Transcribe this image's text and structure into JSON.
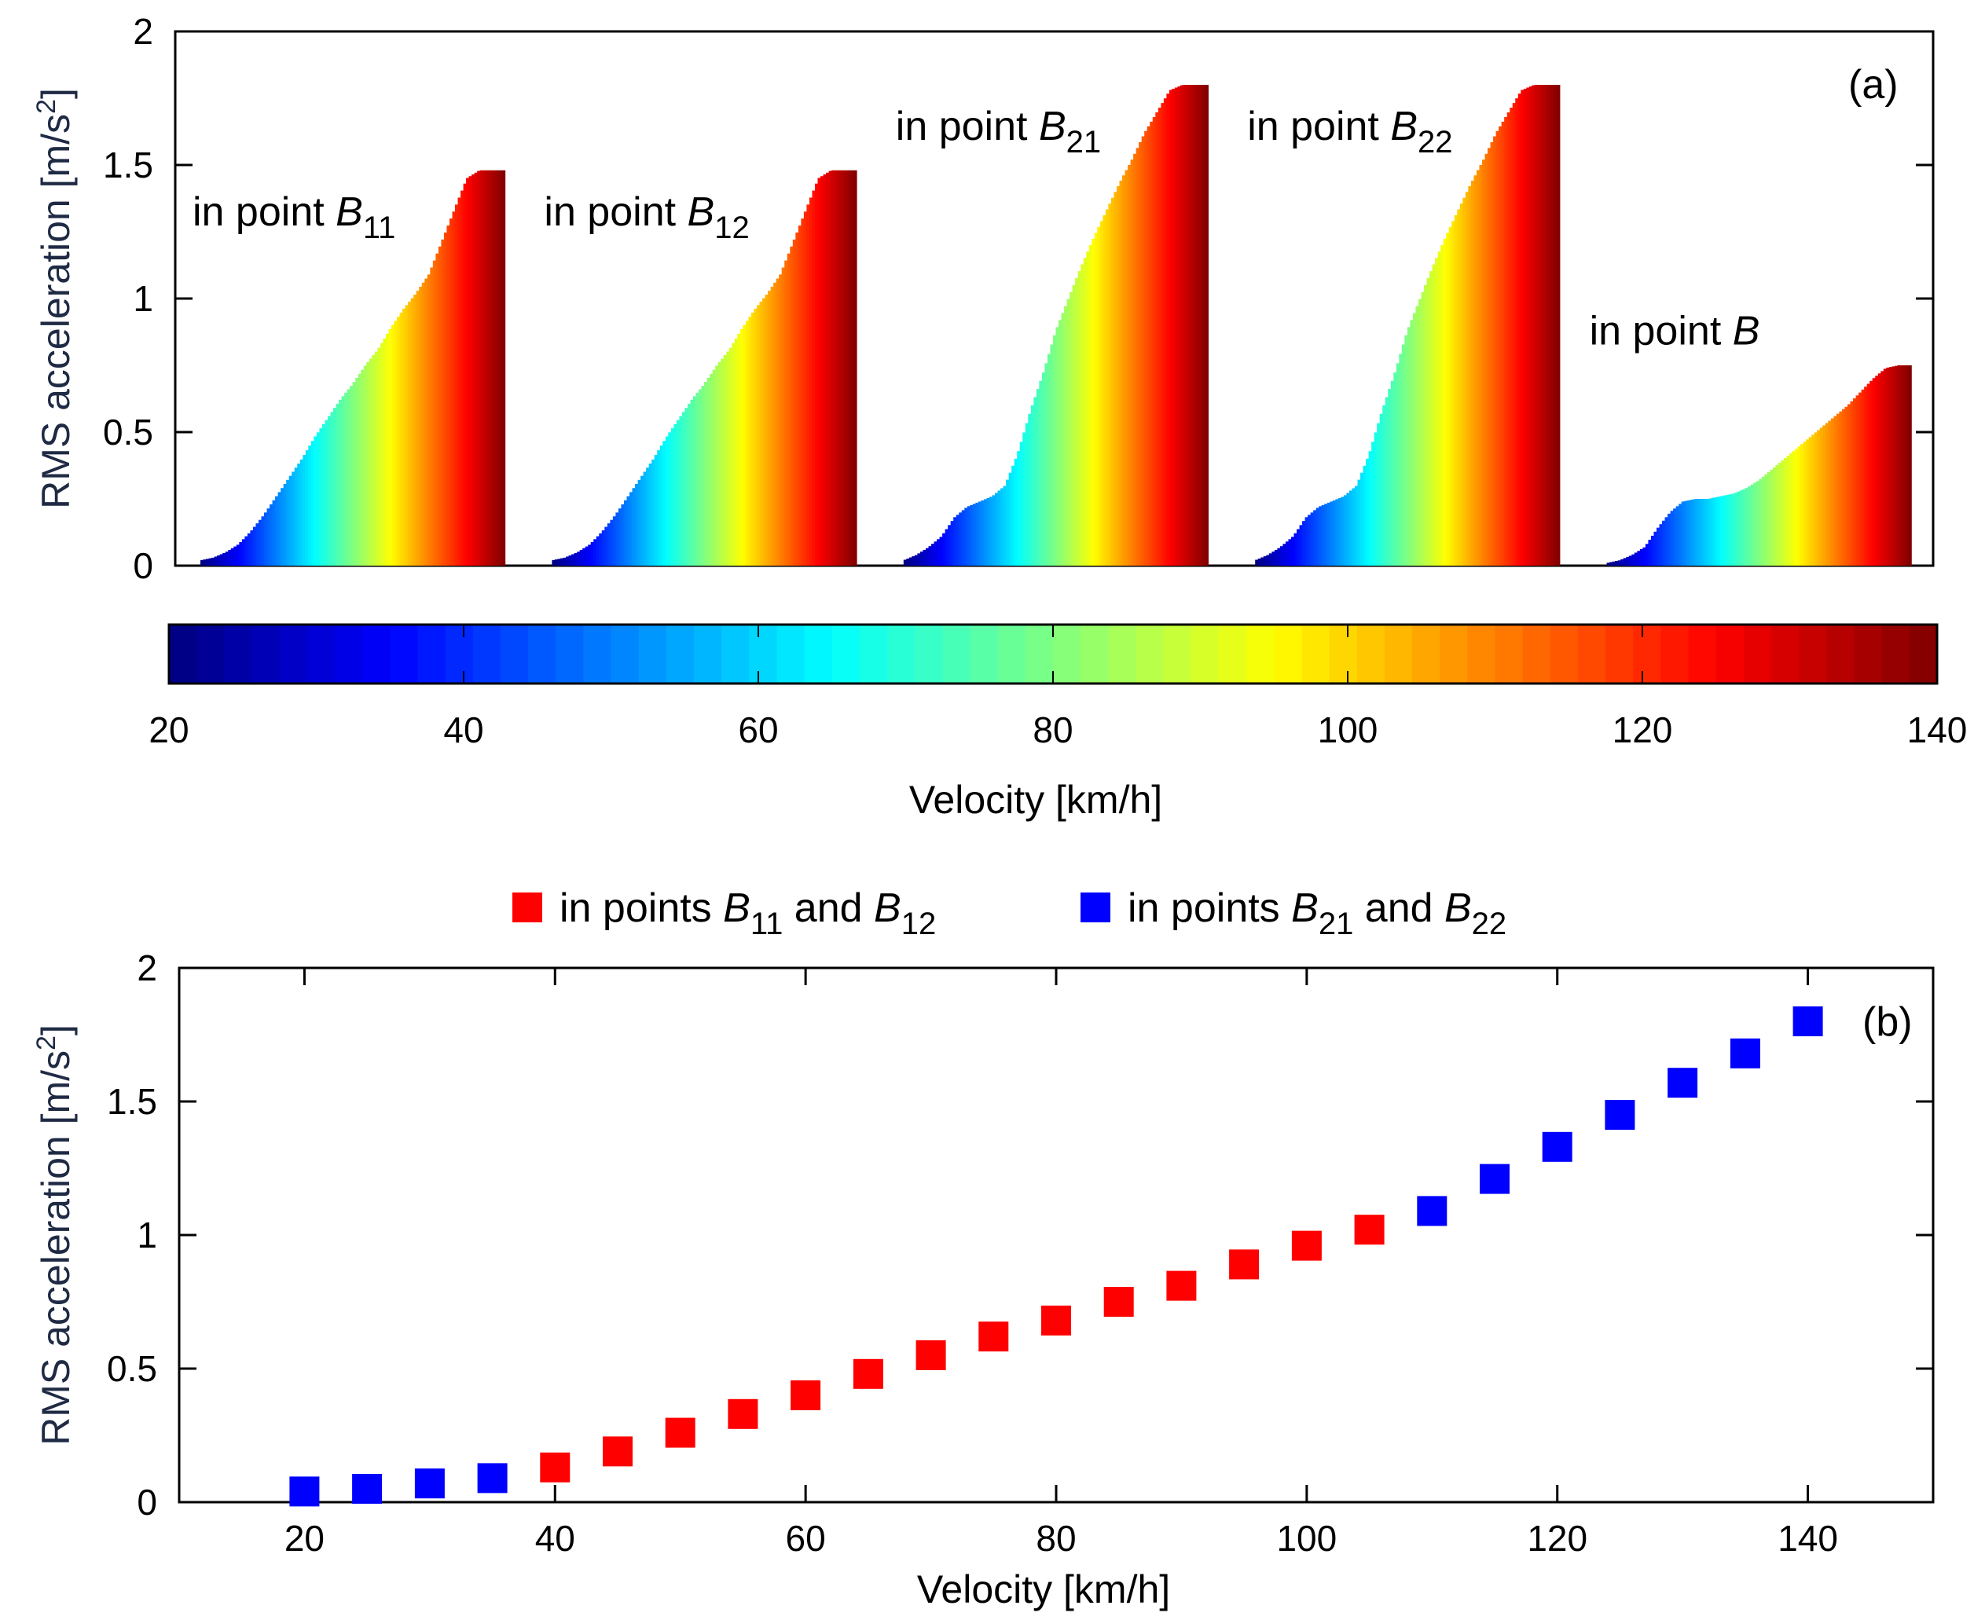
{
  "chart_data": [
    {
      "type": "area",
      "panel_label": "(a)",
      "title": "",
      "ylabel": "RMS acceleration [m/s",
      "ylabel_sup": "2",
      "ylabel_close": "]",
      "ylim": [
        0,
        2
      ],
      "yticks": [
        "0",
        "0.5",
        "1",
        "1.5",
        "2"
      ],
      "yticks_values": [
        0,
        0.5,
        1,
        1.5,
        2
      ],
      "velocity_range": [
        20,
        140
      ],
      "series": [
        {
          "name": "in point B11",
          "text": "in point ",
          "base": "B",
          "sub": "11",
          "values": [
            0.02,
            0.03,
            0.05,
            0.08,
            0.13,
            0.19,
            0.26,
            0.33,
            0.4,
            0.48,
            0.55,
            0.62,
            0.68,
            0.75,
            0.81,
            0.89,
            0.96,
            1.02,
            1.09,
            1.21,
            1.33,
            1.45,
            1.48,
            1.48,
            1.48
          ]
        },
        {
          "name": "in point B12",
          "text": "in point ",
          "base": "B",
          "sub": "12",
          "values": [
            0.02,
            0.03,
            0.05,
            0.08,
            0.13,
            0.19,
            0.26,
            0.33,
            0.4,
            0.48,
            0.55,
            0.62,
            0.68,
            0.75,
            0.81,
            0.89,
            0.96,
            1.02,
            1.09,
            1.21,
            1.33,
            1.45,
            1.48,
            1.48,
            1.48
          ]
        },
        {
          "name": "in point B21",
          "text": "in point ",
          "base": "B",
          "sub": "21",
          "values": [
            0.02,
            0.04,
            0.07,
            0.11,
            0.18,
            0.22,
            0.24,
            0.26,
            0.3,
            0.42,
            0.58,
            0.72,
            0.88,
            1.0,
            1.12,
            1.23,
            1.33,
            1.43,
            1.52,
            1.62,
            1.7,
            1.78,
            1.8,
            1.8,
            1.8
          ]
        },
        {
          "name": "in point B22",
          "text": "in point ",
          "base": "B",
          "sub": "22",
          "values": [
            0.02,
            0.04,
            0.07,
            0.11,
            0.18,
            0.22,
            0.24,
            0.26,
            0.3,
            0.42,
            0.58,
            0.72,
            0.88,
            1.0,
            1.12,
            1.23,
            1.33,
            1.43,
            1.52,
            1.62,
            1.7,
            1.78,
            1.8,
            1.8,
            1.8
          ]
        },
        {
          "name": "in point B",
          "text": "in point ",
          "base": "B",
          "sub": "",
          "values": [
            0.01,
            0.02,
            0.04,
            0.07,
            0.14,
            0.2,
            0.24,
            0.25,
            0.25,
            0.26,
            0.27,
            0.29,
            0.32,
            0.36,
            0.4,
            0.44,
            0.48,
            0.52,
            0.56,
            0.6,
            0.65,
            0.7,
            0.74,
            0.75,
            0.75
          ]
        }
      ]
    },
    {
      "type": "colorbar",
      "xlabel": "Velocity [km/h]",
      "range": [
        20,
        140
      ],
      "ticks": [
        20,
        40,
        60,
        80,
        100,
        120,
        140
      ]
    },
    {
      "type": "scatter",
      "panel_label": "(b)",
      "xlabel": "Velocity [km/h]",
      "ylabel": "RMS acceleration [m/s",
      "ylabel_sup": "2",
      "ylabel_close": "]",
      "xlim": [
        10,
        150
      ],
      "ylim": [
        0,
        2
      ],
      "xticks": [
        20,
        40,
        60,
        80,
        100,
        120,
        140
      ],
      "yticks": [
        "0",
        "0.5",
        "1",
        "1.5",
        "2"
      ],
      "yticks_values": [
        0,
        0.5,
        1,
        1.5,
        2
      ],
      "legend_position": "top-center",
      "series": [
        {
          "name": "in points B11 and B12",
          "color": "#ff0000",
          "legend_text": "in points ",
          "legend_sub1": "11",
          "legend_mid": " and  ",
          "legend_sub2": "12",
          "x": [
            40,
            45,
            50,
            55,
            60,
            65,
            70,
            75,
            80,
            85,
            90,
            95,
            100,
            105
          ],
          "y": [
            0.13,
            0.19,
            0.26,
            0.33,
            0.4,
            0.48,
            0.55,
            0.62,
            0.68,
            0.75,
            0.81,
            0.89,
            0.96,
            1.02
          ]
        },
        {
          "name": "in points B21 and B22",
          "color": "#0000ff",
          "legend_text": "in points ",
          "legend_sub1": "21",
          "legend_mid": " and  ",
          "legend_sub2": "22",
          "x": [
            20,
            25,
            30,
            35,
            110,
            115,
            120,
            125,
            130,
            135,
            140
          ],
          "y": [
            0.04,
            0.05,
            0.07,
            0.09,
            1.09,
            1.21,
            1.33,
            1.45,
            1.57,
            1.68,
            1.8
          ]
        }
      ]
    }
  ]
}
